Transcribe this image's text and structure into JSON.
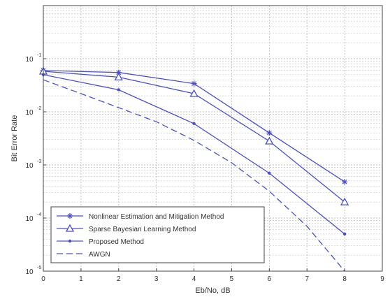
{
  "chart_data": {
    "type": "line",
    "xlabel": "Eb/No, dB",
    "ylabel": "Bit Error Rate",
    "xlim": [
      0,
      9
    ],
    "ylim": [
      1e-05,
      1
    ],
    "yscale": "log",
    "grid": true,
    "legend_position": "bottom-left",
    "x_tick_labels": [
      "0",
      "1",
      "2",
      "3",
      "4",
      "5",
      "6",
      "7",
      "8",
      "9"
    ],
    "y_tick_labels": [
      {
        "base": "10",
        "exp": "-5",
        "value": 1e-05
      },
      {
        "base": "10",
        "exp": "-4",
        "value": 0.0001
      },
      {
        "base": "10",
        "exp": "-3",
        "value": 0.001
      },
      {
        "base": "10",
        "exp": "-2",
        "value": 0.01
      },
      {
        "base": "10",
        "exp": "-1",
        "value": 0.1
      }
    ],
    "series": [
      {
        "name": "Nonlinear Estimation and Mitigation Method",
        "marker": "star",
        "dash": "solid",
        "x": [
          0,
          2,
          4,
          6,
          8
        ],
        "y": [
          0.06,
          0.055,
          0.034,
          0.004,
          0.00048
        ]
      },
      {
        "name": "Sparse Bayesian Learning Method",
        "marker": "triangle",
        "dash": "solid",
        "x": [
          0,
          2,
          4,
          6,
          8
        ],
        "y": [
          0.058,
          0.045,
          0.022,
          0.0028,
          0.0002
        ]
      },
      {
        "name": "Proposed Method",
        "marker": "dot",
        "dash": "solid",
        "x": [
          0,
          2,
          4,
          6,
          8
        ],
        "y": [
          0.05,
          0.026,
          0.006,
          0.0007,
          5e-05
        ]
      },
      {
        "name": "AWGN",
        "marker": "none",
        "dash": "dashed",
        "x": [
          0,
          1,
          2,
          3,
          4,
          5,
          6,
          7,
          8
        ],
        "y": [
          0.04,
          0.022,
          0.012,
          0.0065,
          0.0029,
          0.0011,
          0.00032,
          7e-05,
          1e-05
        ]
      }
    ]
  },
  "colors": {
    "series": "#4a4fd0",
    "axis": "#444444",
    "grid": "#b8b8b8",
    "text": "#333333"
  }
}
